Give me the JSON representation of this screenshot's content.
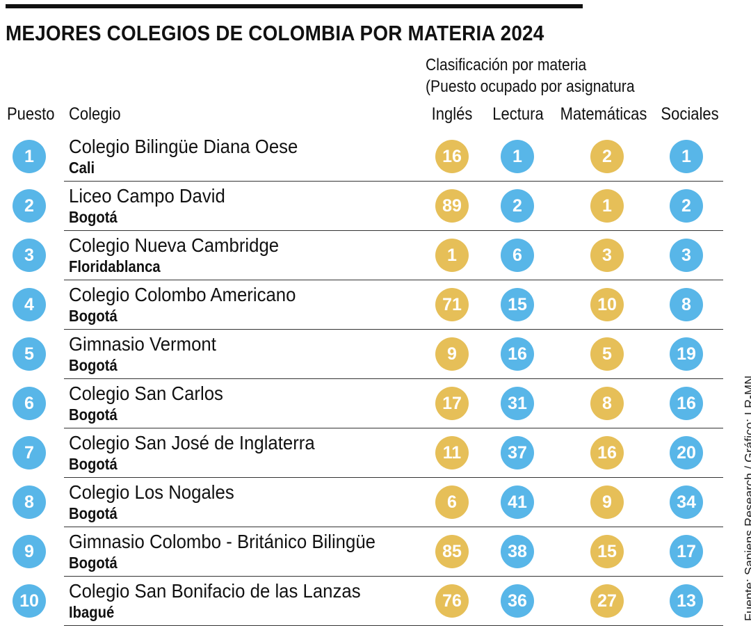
{
  "title": "MEJORES COLEGIOS DE COLOMBIA POR MATERIA 2024",
  "group_label_line1": "Clasificación por materia",
  "group_label_line2": "(Puesto ocupado por asignatura",
  "source": "Fuente: Sapiens Research / Gráfico: LR-MN",
  "colors": {
    "blue": "#58b6e8",
    "gold": "#e6bf58",
    "text": "#111111"
  },
  "chart_data": {
    "type": "table",
    "columns": [
      "Puesto",
      "Colegio",
      "Inglés",
      "Lectura",
      "Matemáticas",
      "Sociales"
    ],
    "rows": [
      {
        "rank": "1",
        "school": "Colegio Bilingüe Diana Oese",
        "city": "Cali",
        "ingles": "16",
        "lectura": "1",
        "matematicas": "2",
        "sociales": "1"
      },
      {
        "rank": "2",
        "school": "Liceo Campo David",
        "city": "Bogotá",
        "ingles": "89",
        "lectura": "2",
        "matematicas": "1",
        "sociales": "2"
      },
      {
        "rank": "3",
        "school": "Colegio Nueva Cambridge",
        "city": "Floridablanca",
        "ingles": "1",
        "lectura": "6",
        "matematicas": "3",
        "sociales": "3"
      },
      {
        "rank": "4",
        "school": "Colegio Colombo Americano",
        "city": "Bogotá",
        "ingles": "71",
        "lectura": "15",
        "matematicas": "10",
        "sociales": "8"
      },
      {
        "rank": "5",
        "school": "Gimnasio Vermont",
        "city": "Bogotá",
        "ingles": "9",
        "lectura": "16",
        "matematicas": "5",
        "sociales": "19"
      },
      {
        "rank": "6",
        "school": "Colegio San Carlos",
        "city": "Bogotá",
        "ingles": "17",
        "lectura": "31",
        "matematicas": "8",
        "sociales": "16"
      },
      {
        "rank": "7",
        "school": "Colegio San José de Inglaterra",
        "city": "Bogotá",
        "ingles": "11",
        "lectura": "37",
        "matematicas": "16",
        "sociales": "20"
      },
      {
        "rank": "8",
        "school": "Colegio Los Nogales",
        "city": "Bogotá",
        "ingles": "6",
        "lectura": "41",
        "matematicas": "9",
        "sociales": "34"
      },
      {
        "rank": "9",
        "school": "Gimnasio Colombo - Británico Bilingüe",
        "city": "Bogotá",
        "ingles": "85",
        "lectura": "38",
        "matematicas": "15",
        "sociales": "17"
      },
      {
        "rank": "10",
        "school": "Colegio San Bonifacio de las Lanzas",
        "city": "Ibagué",
        "ingles": "76",
        "lectura": "36",
        "matematicas": "27",
        "sociales": "13"
      }
    ]
  }
}
